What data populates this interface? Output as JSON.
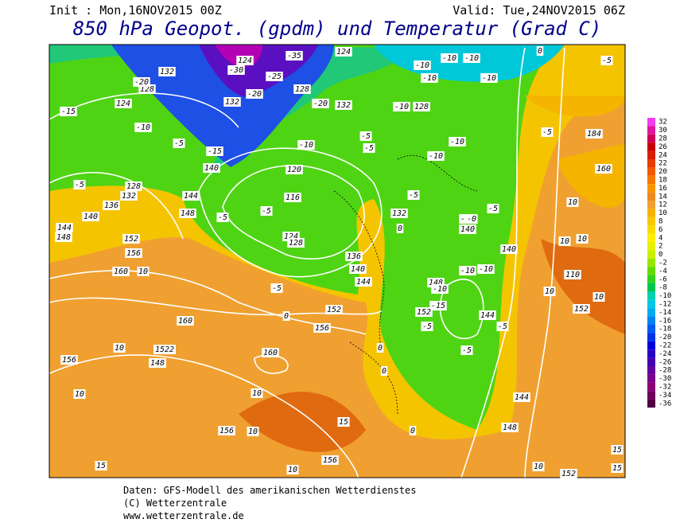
{
  "header": {
    "init": "Init : Mon,16NOV2015 00Z",
    "valid": "Valid: Tue,24NOV2015 06Z",
    "title": "850 hPa Geopot. (gpdm) und Temperatur (Grad C)"
  },
  "legend": {
    "ticks": [
      32,
      30,
      28,
      26,
      24,
      22,
      20,
      18,
      16,
      14,
      12,
      10,
      8,
      6,
      4,
      2,
      0,
      -2,
      -4,
      -6,
      -8,
      -10,
      -12,
      -14,
      -16,
      -18,
      -20,
      -22,
      -24,
      -26,
      -28,
      -30,
      -32,
      -34,
      -36
    ],
    "colors": [
      "#f23cf0",
      "#e0169e",
      "#d0005a",
      "#c80000",
      "#d81e00",
      "#e63c00",
      "#f05a00",
      "#f57800",
      "#f89600",
      "#ec8a20",
      "#f0a030",
      "#f5b400",
      "#f8c800",
      "#fadc00",
      "#fff000",
      "#e6f000",
      "#c8f000",
      "#96e600",
      "#64dc00",
      "#32d21e",
      "#00c850",
      "#00d2b4",
      "#00c8e6",
      "#00aaf0",
      "#0082f0",
      "#005af0",
      "#0032e6",
      "#0000dc",
      "#2800c8",
      "#4600b4",
      "#6400a0",
      "#78008c",
      "#8c0078",
      "#6e005a",
      "#500040"
    ]
  },
  "map": {
    "labels": [
      "132",
      "124",
      "128",
      "-20",
      "-15",
      "-10",
      "-5",
      "-15",
      "140",
      "132",
      "-20",
      "-25",
      "-30",
      "124",
      "-35",
      "128",
      "-20",
      "132",
      "-10",
      "120",
      "116",
      "-5",
      "124",
      "128",
      "-5",
      "144",
      "148",
      "136",
      "132",
      "128",
      "-5",
      "140",
      "144",
      "148",
      "152",
      "156",
      "160",
      "10",
      "160",
      "10",
      "156",
      "1522",
      "148",
      "160",
      "10",
      "10",
      "156",
      "10",
      "15",
      "156",
      "15",
      "10",
      "136",
      "140",
      "144",
      "-5",
      "0",
      "152",
      "156",
      "0",
      "0",
      "0",
      "-10",
      "-10",
      "-10",
      "-10",
      "-10",
      "128",
      "-10",
      "-5",
      "-5",
      "-10",
      "-10",
      "-5",
      "132",
      "0",
      "140",
      "-10",
      "-5",
      "140",
      "-10",
      "-10",
      "148",
      "-10",
      "-15",
      "152",
      "-5",
      "144",
      "-5",
      "-5",
      "144",
      "148",
      "10",
      "152",
      "10",
      "10",
      "10",
      "110",
      "10",
      "152",
      "10",
      "160",
      "184",
      "-5",
      "-5",
      "0",
      "15",
      "15",
      "124",
      "-0"
    ]
  },
  "footer": {
    "lines": [
      "Daten: GFS-Modell des amerikanischen Wetterdienstes",
      "(C) Wetterzentrale",
      "www.wetterzentrale.de"
    ]
  }
}
